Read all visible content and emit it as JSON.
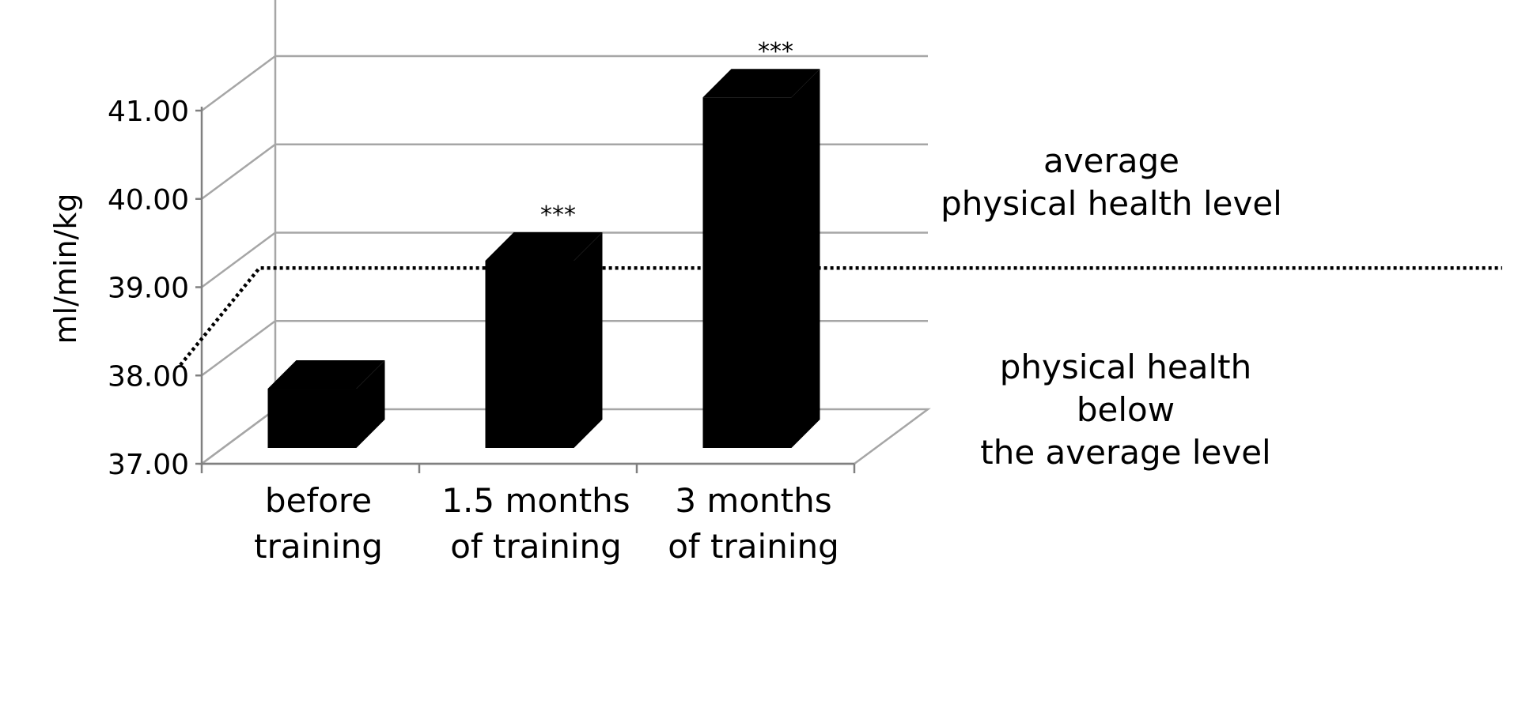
{
  "chart_data": {
    "type": "bar",
    "style": "3d",
    "ylabel": "ml/min/kg",
    "ylim": [
      37.0,
      41.0
    ],
    "yticks": [
      "37.00",
      "38.00",
      "39.00",
      "40.00",
      "41.00"
    ],
    "categories": [
      [
        "before",
        "training"
      ],
      [
        "1.5 months",
        "of training"
      ],
      [
        "3 months",
        "of training"
      ]
    ],
    "values": [
      37.85,
      39.3,
      41.15
    ],
    "significance": [
      "",
      "***",
      "***"
    ],
    "threshold": {
      "value": 38.6,
      "style": "dotted"
    },
    "zones": {
      "above": [
        "average",
        "physical health level"
      ],
      "below": [
        "physical health",
        "below",
        "the average level"
      ]
    },
    "grid": true,
    "colors": {
      "bars": "#000000",
      "grid": "#a6a6a6",
      "axis": "#808080"
    }
  }
}
